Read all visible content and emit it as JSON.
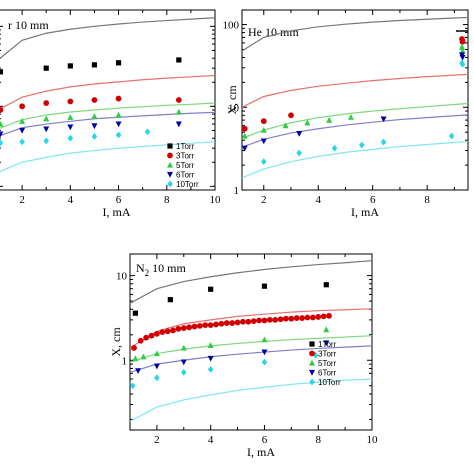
{
  "chart_data": [
    {
      "type": "scatter",
      "title": "r 10 mm",
      "xlabel": "I, mA",
      "ylabel": "",
      "xlim": [
        1,
        10
      ],
      "ylim": [
        0.9,
        160
      ],
      "yscale": "log",
      "xticks": [
        2,
        4,
        6,
        8,
        10
      ],
      "xtick_labels": [
        "2",
        "4",
        "6",
        "8",
        "10"
      ],
      "yticks": [],
      "ytick_labels": [],
      "legend": {
        "position": "bottom-right",
        "entries": [
          "1Torr",
          "3Torr",
          "5Torr",
          "6Torr",
          "10Torr"
        ]
      },
      "series": [
        {
          "name": "1Torr",
          "color": "#000000",
          "marker": "square",
          "x": [
            1.1,
            3,
            4,
            5,
            6,
            8.5
          ],
          "y": [
            27,
            30,
            32,
            33,
            35,
            38
          ],
          "fit": {
            "color": "#777777",
            "x": [
              1,
              2,
              3,
              4,
              5,
              6,
              7,
              8,
              9,
              10
            ],
            "y": [
              38,
              67,
              82,
              92,
              100,
              107,
              113,
              118,
              123,
              128
            ]
          }
        },
        {
          "name": "3Torr",
          "color": "#d10000",
          "marker": "circle",
          "x": [
            1.1,
            2,
            3,
            4,
            5,
            6,
            8.5
          ],
          "y": [
            9,
            10,
            11,
            11.5,
            12,
            12.5,
            12
          ],
          "fit": {
            "color": "#e8706f",
            "x": [
              1,
              2,
              3,
              4,
              5,
              6,
              7,
              8,
              9,
              10
            ],
            "y": [
              9,
              13,
              15.5,
              17.5,
              19,
              20.2,
              21.5,
              22.5,
              23.4,
              24.3
            ]
          }
        },
        {
          "name": "5Torr",
          "color": "#2ecc40",
          "marker": "triangle-up",
          "x": [
            1.1,
            2,
            3,
            4,
            5,
            6,
            8.5
          ],
          "y": [
            6,
            6.5,
            7,
            7.3,
            7.5,
            7.8,
            8.5
          ],
          "fit": {
            "color": "#7ed87e",
            "x": [
              1,
              2,
              3,
              4,
              5,
              6,
              7,
              8,
              9,
              10
            ],
            "y": [
              5.2,
              6.8,
              7.8,
              8.5,
              9,
              9.5,
              9.9,
              10.3,
              10.6,
              11
            ]
          }
        },
        {
          "name": "6Torr",
          "color": "#0000a8",
          "marker": "triangle-down",
          "x": [
            1.1,
            2,
            3,
            4,
            5,
            6,
            8.5
          ],
          "y": [
            4.5,
            5,
            5.2,
            5.5,
            5.7,
            6,
            6
          ],
          "fit": {
            "color": "#7f7fc6",
            "x": [
              1,
              2,
              3,
              4,
              5,
              6,
              7,
              8,
              9,
              10
            ],
            "y": [
              4.2,
              5.4,
              6,
              6.5,
              7,
              7.3,
              7.6,
              7.9,
              8.2,
              8.4
            ]
          }
        },
        {
          "name": "10Torr",
          "color": "#29d5e8",
          "marker": "diamond",
          "x": [
            1.1,
            2,
            3,
            4,
            5,
            6,
            7.2
          ],
          "y": [
            3.5,
            3.6,
            3.7,
            4,
            4.2,
            4.4,
            4.8
          ],
          "fit": {
            "color": "#7fe7ef",
            "x": [
              1,
              2,
              3,
              4,
              5,
              6,
              7,
              8,
              9,
              10
            ],
            "y": [
              1.5,
              2,
              2.3,
              2.6,
              2.8,
              3,
              3.15,
              3.3,
              3.45,
              3.6
            ]
          }
        }
      ]
    },
    {
      "type": "scatter",
      "title": "He 10 mm",
      "xlabel": "I, mA",
      "ylabel": "X, cm",
      "xlim": [
        1.2,
        9.5
      ],
      "ylim": [
        1,
        150
      ],
      "yscale": "log",
      "xticks": [
        2,
        4,
        6,
        8
      ],
      "xtick_labels": [
        "2",
        "4",
        "6",
        "8"
      ],
      "yticks": [
        1,
        10,
        100
      ],
      "ytick_labels": [
        "1",
        "10",
        "100"
      ],
      "legend": {
        "position": "top-right",
        "entries": []
      },
      "series": [
        {
          "name": "1Torr",
          "color": "#000000",
          "marker": "square",
          "x": [],
          "y": [],
          "fit": {
            "color": "#777777",
            "x": [
              1.2,
              2,
              3,
              4,
              5,
              6,
              7,
              8,
              9,
              9.5
            ],
            "y": [
              48,
              70,
              84,
              94,
              101,
              107,
              112,
              116,
              120,
              122
            ]
          }
        },
        {
          "name": "3Torr",
          "color": "#d10000",
          "marker": "circle",
          "x": [
            1.3,
            2,
            3,
            9.3
          ],
          "y": [
            5.5,
            6.8,
            8,
            62
          ],
          "fit": {
            "color": "#e8706f",
            "x": [
              1.2,
              2,
              3,
              4,
              5,
              6,
              7,
              8,
              9,
              9.5
            ],
            "y": [
              10,
              13.5,
              16,
              18,
              19.5,
              21,
              22.3,
              23.5,
              24.5,
              25
            ]
          }
        },
        {
          "name": "5Torr",
          "color": "#2ecc40",
          "marker": "triangle-up",
          "x": [
            1.3,
            2,
            2.8,
            3.6,
            4.4,
            5.2,
            9.3
          ],
          "y": [
            4.5,
            5.3,
            6,
            6.5,
            7,
            7.6,
            48
          ],
          "fit": {
            "color": "#7ed87e",
            "x": [
              1.2,
              2,
              3,
              4,
              5,
              6,
              7,
              8,
              9,
              9.5
            ],
            "y": [
              4.2,
              5.3,
              6.5,
              7.5,
              8.3,
              9,
              9.6,
              10.2,
              10.8,
              11.1
            ]
          }
        },
        {
          "name": "6Torr",
          "color": "#0000a8",
          "marker": "triangle-down",
          "x": [
            1.3,
            2,
            3.3,
            6.4,
            9.3
          ],
          "y": [
            3.2,
            3.9,
            4.8,
            7.2,
            40
          ],
          "fit": {
            "color": "#7f7fc6",
            "x": [
              1.2,
              2,
              3,
              4,
              5,
              6,
              7,
              8,
              9,
              9.5
            ],
            "y": [
              3.3,
              4.1,
              4.9,
              5.5,
              6.1,
              6.6,
              7.1,
              7.5,
              7.9,
              8.1
            ]
          }
        },
        {
          "name": "10Torr",
          "color": "#29d5e8",
          "marker": "diamond",
          "x": [
            2,
            3.3,
            4.6,
            5.6,
            6.4,
            8.9,
            9.3
          ],
          "y": [
            2.2,
            2.8,
            3.2,
            3.5,
            3.8,
            4.5,
            33
          ],
          "fit": {
            "color": "#7fe7ef",
            "x": [
              1.2,
              2,
              3,
              4,
              5,
              6,
              7,
              8,
              9,
              9.5
            ],
            "y": [
              1.4,
              1.8,
              2.2,
              2.55,
              2.85,
              3.1,
              3.35,
              3.55,
              3.75,
              3.85
            ]
          }
        }
      ]
    },
    {
      "type": "scatter",
      "title": "N 10 mm",
      "title_subscript": "2",
      "xlabel": "I, mA",
      "ylabel": "X, cm",
      "xlim": [
        1,
        10
      ],
      "ylim": [
        0.15,
        18
      ],
      "yscale": "log",
      "xticks": [
        2,
        4,
        6,
        8,
        10
      ],
      "xtick_labels": [
        "2",
        "4",
        "6",
        "8",
        "10"
      ],
      "yticks": [
        1,
        10
      ],
      "ytick_labels": [
        "1",
        "10"
      ],
      "legend": {
        "position": "bottom-right",
        "entries": [
          "1Torr",
          "3Torr",
          "5Torr",
          "6Torr",
          "10Torr"
        ]
      },
      "series": [
        {
          "name": "1Torr",
          "color": "#000000",
          "marker": "square",
          "x": [
            1.2,
            2.5,
            4,
            6,
            8.3
          ],
          "y": [
            3.6,
            5.2,
            6.9,
            7.5,
            7.8
          ],
          "fit": {
            "color": "#777777",
            "x": [
              1,
              2,
              3,
              4,
              5,
              6,
              7,
              8,
              9,
              10
            ],
            "y": [
              4.7,
              7,
              8.5,
              9.7,
              10.8,
              11.8,
              12.7,
              13.5,
              14.2,
              15
            ]
          }
        },
        {
          "name": "3Torr",
          "color": "#d10000",
          "marker": "circle",
          "x": [
            1.15,
            1.4,
            1.6,
            1.8,
            2.0,
            2.2,
            2.4,
            2.6,
            2.8,
            3.0,
            3.2,
            3.4,
            3.6,
            3.8,
            4.0,
            4.2,
            4.4,
            4.6,
            4.8,
            5.0,
            5.2,
            5.4,
            5.6,
            5.8,
            6.0,
            6.2,
            6.4,
            6.6,
            6.8,
            7.0,
            7.2,
            7.4,
            7.6,
            7.8,
            8.0,
            8.2,
            8.4
          ],
          "y": [
            1.4,
            1.7,
            1.85,
            1.95,
            2.05,
            2.15,
            2.2,
            2.25,
            2.35,
            2.4,
            2.45,
            2.5,
            2.55,
            2.6,
            2.6,
            2.65,
            2.7,
            2.75,
            2.75,
            2.8,
            2.85,
            2.85,
            2.9,
            2.95,
            2.95,
            3.0,
            3.0,
            3.05,
            3.1,
            3.1,
            3.15,
            3.15,
            3.2,
            3.2,
            3.25,
            3.3,
            3.35
          ],
          "fit": {
            "color": "#e8706f",
            "x": [
              1,
              2,
              3,
              4,
              5,
              6,
              7,
              8,
              9,
              10
            ],
            "y": [
              1.4,
              2.2,
              2.7,
              3.0,
              3.3,
              3.5,
              3.7,
              3.85,
              3.95,
              4.05
            ]
          }
        },
        {
          "name": "5Torr",
          "color": "#2ecc40",
          "marker": "triangle-up",
          "x": [
            1.2,
            1.5,
            2,
            3,
            4,
            6,
            8.3
          ],
          "y": [
            1.05,
            1.1,
            1.2,
            1.4,
            1.5,
            1.75,
            2.3
          ],
          "fit": {
            "color": "#7ed87e",
            "x": [
              1,
              2,
              3,
              4,
              5,
              6,
              7,
              8,
              9,
              10
            ],
            "y": [
              0.95,
              1.2,
              1.35,
              1.48,
              1.58,
              1.67,
              1.75,
              1.82,
              1.88,
              1.95
            ]
          }
        },
        {
          "name": "6Torr",
          "color": "#0000a8",
          "marker": "triangle-down",
          "x": [
            1.3,
            2,
            3,
            4,
            6,
            8.3
          ],
          "y": [
            0.75,
            0.85,
            0.95,
            1.05,
            1.25,
            1.6
          ],
          "fit": {
            "color": "#7f7fc6",
            "x": [
              1,
              2,
              3,
              4,
              5,
              6,
              7,
              8,
              9,
              10
            ],
            "y": [
              0.72,
              0.9,
              1.0,
              1.1,
              1.18,
              1.25,
              1.32,
              1.38,
              1.43,
              1.48
            ]
          }
        },
        {
          "name": "10Torr",
          "color": "#29d5e8",
          "marker": "diamond",
          "x": [
            1.1,
            2,
            3,
            4,
            6,
            7.9
          ],
          "y": [
            0.5,
            0.62,
            0.72,
            0.78,
            0.95,
            1.15
          ],
          "fit": {
            "color": "#7fe7ef",
            "x": [
              1,
              2,
              3,
              4,
              5,
              6,
              7,
              8,
              9,
              10
            ],
            "y": [
              0.19,
              0.28,
              0.34,
              0.39,
              0.44,
              0.48,
              0.52,
              0.55,
              0.58,
              0.6
            ]
          }
        }
      ]
    }
  ]
}
